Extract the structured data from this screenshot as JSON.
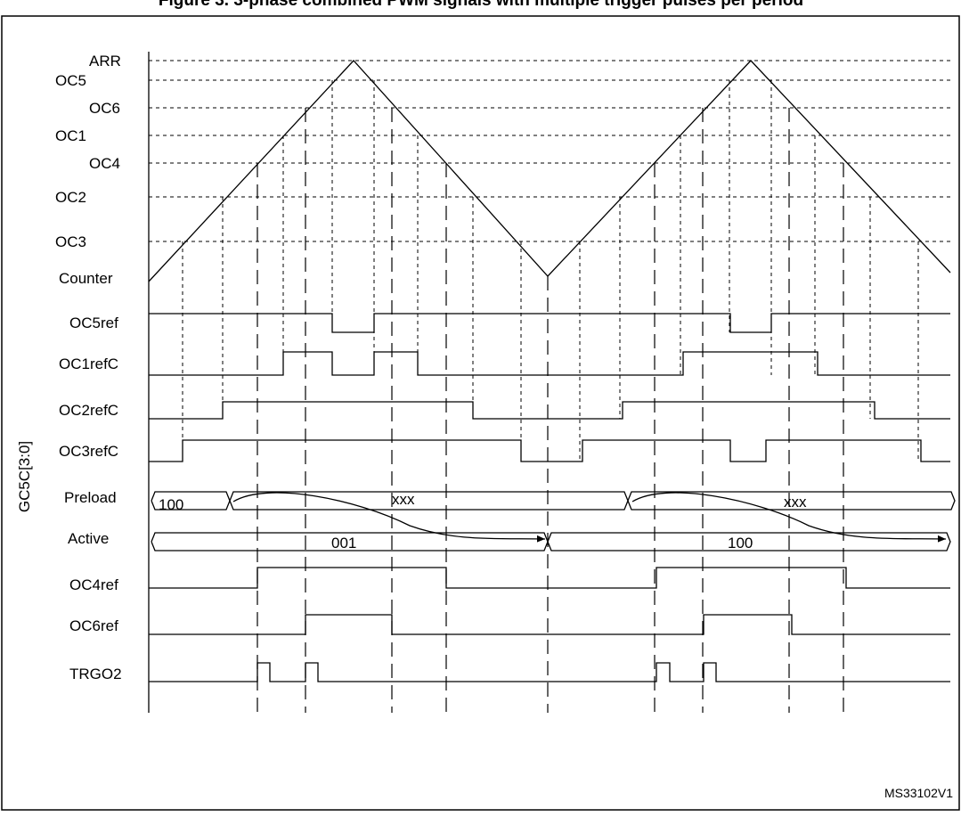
{
  "title": "Figure 3. 3-phase combined PWM signals with multiple trigger pulses per period",
  "levels": [
    "ARR",
    "OC5",
    "OC6",
    "OC1",
    "OC4",
    "OC2",
    "OC3"
  ],
  "signals": [
    "Counter",
    "OC5ref",
    "OC1refC",
    "OC2refC",
    "OC3refC",
    "Preload",
    "Active",
    "OC4ref",
    "OC6ref",
    "TRGO2"
  ],
  "group_label": "GC5C[3:0]",
  "preload_values": [
    "100",
    "xxx",
    "xxx"
  ],
  "active_values": [
    "001",
    "100"
  ],
  "figure_code": "MS33102V1"
}
